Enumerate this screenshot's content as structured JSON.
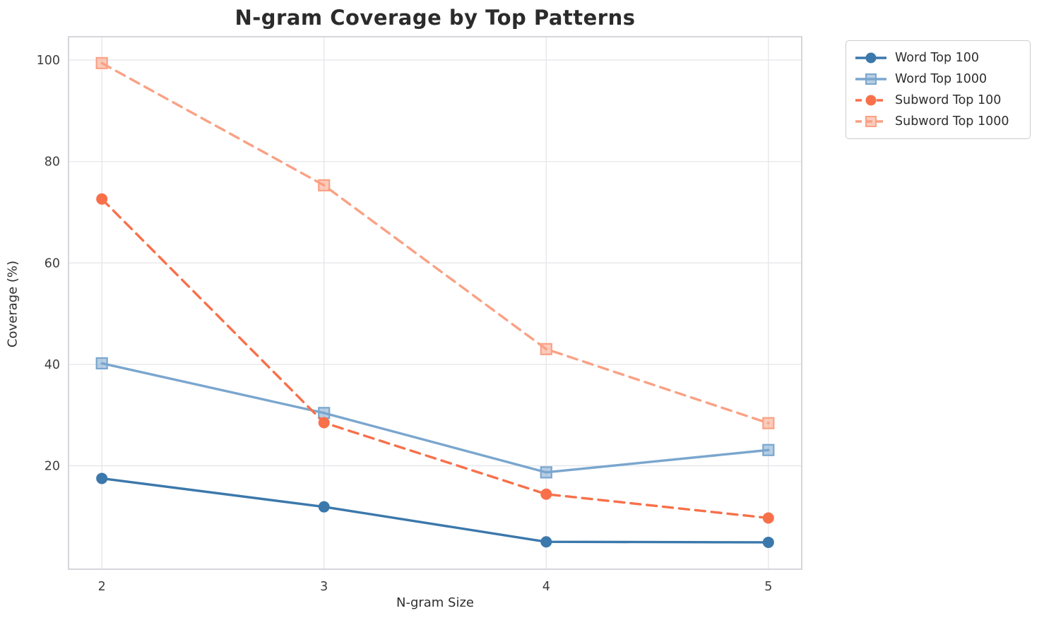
{
  "chart_data": {
    "type": "line",
    "title": "N-gram Coverage by Top Patterns",
    "xlabel": "N-gram Size",
    "ylabel": "Coverage (%)",
    "x": [
      2,
      3,
      4,
      5
    ],
    "xticks": [
      "2",
      "3",
      "4",
      "5"
    ],
    "yticks": [
      20,
      40,
      60,
      80,
      100
    ],
    "xlim": [
      1.85,
      5.15
    ],
    "ylim": [
      -0.4,
      104.6
    ],
    "grid": true,
    "legend_position": "outside-upper-right",
    "colors": {
      "grid": "#e8e8ec",
      "spine": "#d2d2d7",
      "title_text": "#2b2b2b",
      "tick_text": "#3d3d3d",
      "legend_border": "#cccccc"
    },
    "series": [
      {
        "name": "Word Top 100",
        "values": [
          17.5,
          11.9,
          5.0,
          4.9
        ],
        "color": "#3b78ab",
        "marker": "circle",
        "line": "solid"
      },
      {
        "name": "Word Top 1000",
        "values": [
          40.2,
          30.4,
          18.7,
          23.1
        ],
        "color": "#7aa6ce",
        "marker": "square",
        "line": "solid"
      },
      {
        "name": "Subword Top 100",
        "values": [
          72.6,
          28.5,
          14.4,
          9.7
        ],
        "color": "#f7704a",
        "marker": "circle",
        "line": "dashed"
      },
      {
        "name": "Subword Top 1000",
        "values": [
          99.4,
          75.3,
          43.0,
          28.4
        ],
        "color": "#faa184",
        "marker": "square",
        "line": "dashed"
      }
    ]
  }
}
